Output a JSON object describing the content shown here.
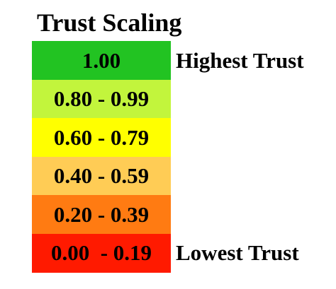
{
  "title": "Trust Scaling",
  "rows": [
    {
      "label": "1.00",
      "color": "#22c322"
    },
    {
      "label": "0.80 - 0.99",
      "color": "#c2f53c"
    },
    {
      "label": "0.60 - 0.79",
      "color": "#ffff00"
    },
    {
      "label": "0.40 - 0.59",
      "color": "#ffcc55"
    },
    {
      "label": "0.20 - 0.39",
      "color": "#ff7b12"
    },
    {
      "label": "0.00  - 0.19",
      "color": "#ff1a00"
    }
  ],
  "top_label": "Highest Trust",
  "bottom_label": "Lowest Trust"
}
